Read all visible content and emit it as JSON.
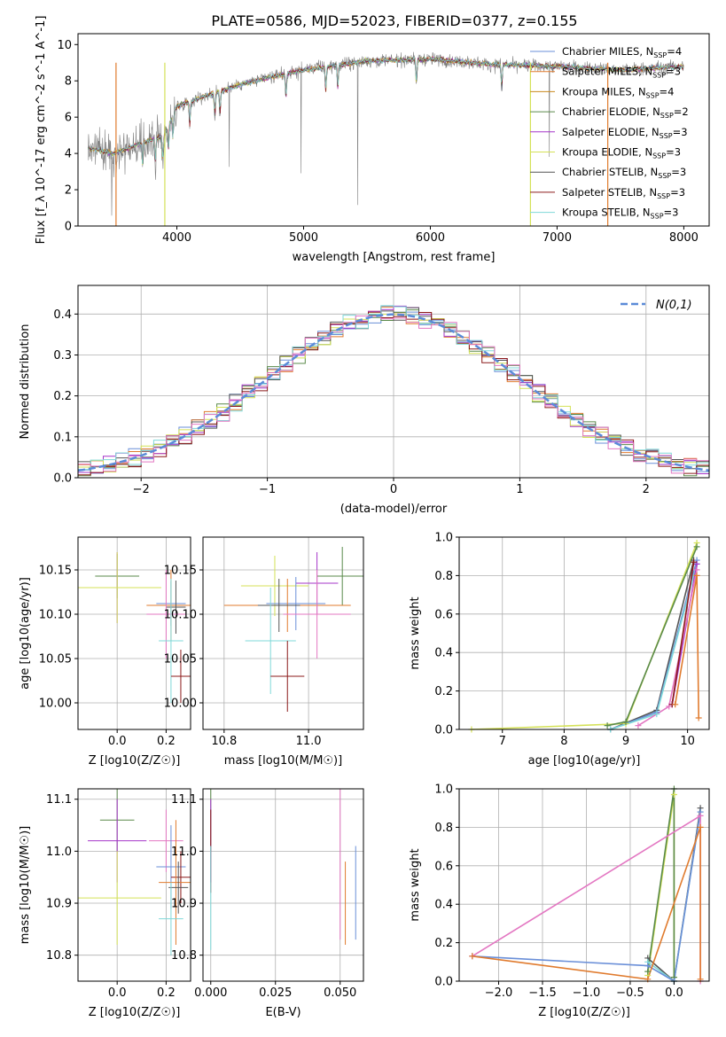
{
  "figure_title": "PLATE=0586, MJD=52023, FIBERID=0377, z=0.155",
  "colors": [
    "#1f77b4"
  ],
  "chart_data": [
    {
      "id": "spectrum",
      "type": "line",
      "xlabel": "wavelength [Angstrom, rest frame]",
      "ylabel": "Flux [f_λ 10^-17 erg cm^-2 s^-1 A^-1]",
      "xlim": [
        3220,
        8200
      ],
      "ylim": [
        0,
        10.6
      ],
      "xticks": [
        4000,
        5000,
        6000,
        7000,
        8000
      ],
      "yticks": [
        0,
        2,
        4,
        6,
        8,
        10
      ],
      "grid": false,
      "legend": "right",
      "observed_color": "#808080",
      "series": [
        {
          "name": "Chabrier MILES, N_SSP=4",
          "color": "#6a8fd8"
        },
        {
          "name": "Salpeter MILES, N_SSP=3",
          "color": "#e07b2e"
        },
        {
          "name": "Kroupa MILES, N_SSP=4",
          "color": "#c98a1e"
        },
        {
          "name": "Chabrier ELODIE, N_SSP=2",
          "color": "#5a8a4a"
        },
        {
          "name": "Salpeter ELODIE, N_SSP=3",
          "color": "#a535c9"
        },
        {
          "name": "Kroupa ELODIE, N_SSP=3",
          "color": "#d4e157"
        },
        {
          "name": "Chabrier STELIB, N_SSP=3",
          "color": "#555555"
        },
        {
          "name": "Salpeter STELIB, N_SSP=3",
          "color": "#8b1a1a"
        },
        {
          "name": "Kroupa STELIB, N_SSP=3",
          "color": "#7fd8d8"
        }
      ],
      "continuum": {
        "x": [
          3300,
          3500,
          3700,
          3900,
          4000,
          4200,
          4500,
          4800,
          5000,
          5500,
          6000,
          6500,
          7000,
          7500,
          8000
        ],
        "y": [
          4.3,
          4.0,
          4.5,
          5.0,
          6.6,
          7.1,
          7.8,
          8.3,
          8.6,
          9.1,
          9.2,
          8.9,
          8.8,
          8.6,
          8.8
        ]
      }
    },
    {
      "id": "residuals",
      "type": "bar",
      "xlabel": "(data-model)/error",
      "ylabel": "Normed distribution",
      "xlim": [
        -2.5,
        2.5
      ],
      "ylim": [
        0,
        0.47
      ],
      "xticks": [
        -2,
        -1,
        0,
        1,
        2
      ],
      "yticks": [
        0.0,
        0.1,
        0.2,
        0.3,
        0.4
      ],
      "grid": true,
      "legend": "top-right",
      "reference_label": "N(0,1)",
      "reference_color": "#5b8bd8",
      "bin_width": 0.1,
      "bins_start": -2.5,
      "histogram_colors": [
        "#6a8fd8",
        "#e07b2e",
        "#5a8a4a",
        "#a535c9",
        "#d4e157",
        "#555555",
        "#8b1a1a",
        "#7fd8d8",
        "#e377c2"
      ]
    },
    {
      "id": "age_vs_z",
      "type": "scatter",
      "xlabel": "Z [log10(Z/Z☉)]",
      "ylabel": "age [log10(age/yr)]",
      "xlim": [
        -0.16,
        0.3
      ],
      "ylim": [
        9.97,
        10.187
      ],
      "xticks": [
        0.0,
        0.2
      ],
      "yticks": [
        10.0,
        10.05,
        10.1,
        10.15
      ],
      "grid": true,
      "points": [
        {
          "x": 0.0,
          "y": 10.143,
          "xerr": 0.09,
          "yerr": 0.025,
          "color": "#5a8a4a"
        },
        {
          "x": 0.0,
          "y": 10.13,
          "xerr": 0.14,
          "yerr": 0.04,
          "color": "#a535c9"
        },
        {
          "x": 0.0,
          "y": 10.13,
          "xerr": 0.18,
          "yerr": 0.04,
          "color": "#d4e157"
        },
        {
          "x": 0.22,
          "y": 10.112,
          "xerr": 0.06,
          "yerr": 0.025,
          "color": "#6a8fd8"
        },
        {
          "x": 0.22,
          "y": 10.11,
          "xerr": 0.1,
          "yerr": 0.04,
          "color": "#e07b2e"
        },
        {
          "x": 0.24,
          "y": 10.108,
          "xerr": 0.04,
          "yerr": 0.03,
          "color": "#555555"
        },
        {
          "x": 0.2,
          "y": 10.1,
          "xerr": 0.08,
          "yerr": 0.05,
          "color": "#e377c2"
        },
        {
          "x": 0.22,
          "y": 10.07,
          "xerr": 0.05,
          "yerr": 0.07,
          "color": "#7fd8d8"
        },
        {
          "x": 0.26,
          "y": 10.03,
          "xerr": 0.04,
          "yerr": 0.03,
          "color": "#8b1a1a"
        }
      ]
    },
    {
      "id": "age_vs_mass",
      "type": "scatter",
      "xlabel": "mass [log10(M/M☉)]",
      "ylabel": "",
      "xlim": [
        10.75,
        11.13
      ],
      "ylim": [
        9.97,
        10.187
      ],
      "xticks": [
        10.8,
        11.0
      ],
      "yticks": [
        10.0,
        10.05,
        10.1,
        10.15
      ],
      "grid": true,
      "points": [
        {
          "x": 11.08,
          "y": 10.143,
          "xerr": 0.06,
          "yerr": 0.033,
          "color": "#5a8a4a"
        },
        {
          "x": 11.02,
          "y": 10.135,
          "xerr": 0.05,
          "yerr": 0.035,
          "color": "#a535c9"
        },
        {
          "x": 10.92,
          "y": 10.132,
          "xerr": 0.08,
          "yerr": 0.034,
          "color": "#d4e157"
        },
        {
          "x": 10.97,
          "y": 10.112,
          "xerr": 0.07,
          "yerr": 0.03,
          "color": "#6a8fd8"
        },
        {
          "x": 10.95,
          "y": 10.11,
          "xerr": 0.15,
          "yerr": 0.03,
          "color": "#e07b2e"
        },
        {
          "x": 10.93,
          "y": 10.11,
          "xerr": 0.05,
          "yerr": 0.03,
          "color": "#555555"
        },
        {
          "x": 11.02,
          "y": 10.1,
          "xerr": 0.08,
          "yerr": 0.05,
          "color": "#e377c2"
        },
        {
          "x": 10.91,
          "y": 10.07,
          "xerr": 0.06,
          "yerr": 0.06,
          "color": "#7fd8d8"
        },
        {
          "x": 10.95,
          "y": 10.03,
          "xerr": 0.04,
          "yerr": 0.04,
          "color": "#8b1a1a"
        }
      ]
    },
    {
      "id": "massweight_vs_age",
      "type": "line",
      "xlabel": "age [log10(age/yr)]",
      "ylabel": "mass weight",
      "xlim": [
        6.3,
        10.35
      ],
      "ylim": [
        0,
        1.0
      ],
      "xticks": [
        7,
        8,
        9,
        10
      ],
      "yticks": [
        0.0,
        0.2,
        0.4,
        0.6,
        0.8,
        1.0
      ],
      "grid": true,
      "series": [
        {
          "color": "#d4e157",
          "x": [
            6.5,
            9.0,
            10.15
          ],
          "y": [
            0.0,
            0.03,
            0.97
          ]
        },
        {
          "color": "#5a8a4a",
          "x": [
            8.7,
            9.0,
            10.15
          ],
          "y": [
            0.02,
            0.04,
            0.95
          ]
        },
        {
          "color": "#555555",
          "x": [
            8.75,
            9.5,
            10.1
          ],
          "y": [
            0.0,
            0.1,
            0.88
          ]
        },
        {
          "color": "#6a8fd8",
          "x": [
            8.75,
            9.5,
            10.15
          ],
          "y": [
            0.0,
            0.09,
            0.88
          ]
        },
        {
          "color": "#7fd8d8",
          "x": [
            8.75,
            9.5,
            10.15
          ],
          "y": [
            0.0,
            0.08,
            0.86
          ]
        },
        {
          "color": "#a535c9",
          "x": [
            9.75,
            10.15
          ],
          "y": [
            0.13,
            0.86
          ]
        },
        {
          "color": "#e377c2",
          "x": [
            9.2,
            9.7,
            10.15
          ],
          "y": [
            0.02,
            0.12,
            0.83
          ]
        },
        {
          "color": "#8b1a1a",
          "x": [
            9.75,
            10.1
          ],
          "y": [
            0.13,
            0.87
          ]
        },
        {
          "color": "#e07b2e",
          "x": [
            9.8,
            10.15,
            10.18
          ],
          "y": [
            0.13,
            0.8,
            0.06
          ]
        }
      ]
    },
    {
      "id": "mass_vs_z",
      "type": "scatter",
      "xlabel": "Z [log10(Z/Z☉)]",
      "ylabel": "mass [log10(M/M☉)]",
      "xlim": [
        -0.16,
        0.3
      ],
      "ylim": [
        10.75,
        11.12
      ],
      "xticks": [
        0.0,
        0.2
      ],
      "yticks": [
        10.8,
        10.9,
        11.0,
        11.1
      ],
      "grid": true,
      "points": [
        {
          "x": 0.0,
          "y": 11.06,
          "xerr": 0.07,
          "yerr": 0.06,
          "color": "#5a8a4a"
        },
        {
          "x": 0.2,
          "y": 11.02,
          "xerr": 0.07,
          "yerr": 0.06,
          "color": "#e377c2"
        },
        {
          "x": 0.0,
          "y": 11.02,
          "xerr": 0.12,
          "yerr": 0.08,
          "color": "#a535c9"
        },
        {
          "x": 0.22,
          "y": 10.97,
          "xerr": 0.06,
          "yerr": 0.08,
          "color": "#6a8fd8"
        },
        {
          "x": 0.26,
          "y": 10.95,
          "xerr": 0.04,
          "yerr": 0.05,
          "color": "#8b1a1a"
        },
        {
          "x": 0.24,
          "y": 10.94,
          "xerr": 0.07,
          "yerr": 0.12,
          "color": "#e07b2e"
        },
        {
          "x": 0.25,
          "y": 10.93,
          "xerr": 0.04,
          "yerr": 0.05,
          "color": "#555555"
        },
        {
          "x": 0.0,
          "y": 10.91,
          "xerr": 0.18,
          "yerr": 0.09,
          "color": "#d4e157"
        },
        {
          "x": 0.22,
          "y": 10.87,
          "xerr": 0.05,
          "yerr": 0.07,
          "color": "#7fd8d8"
        }
      ]
    },
    {
      "id": "mass_vs_ebv",
      "type": "scatter",
      "xlabel": "E(B-V)",
      "ylabel": "",
      "xlim": [
        -0.003,
        0.059
      ],
      "ylim": [
        10.75,
        11.12
      ],
      "xticks": [
        0.0,
        0.025,
        0.05
      ],
      "yticks": [
        10.8,
        10.9,
        11.0,
        11.1
      ],
      "grid": true,
      "points": [
        {
          "x": 0.0,
          "y": 11.06,
          "yerr": 0.06,
          "color": "#5a8a4a"
        },
        {
          "x": 0.0,
          "y": 11.02,
          "yerr": 0.08,
          "color": "#a535c9"
        },
        {
          "x": 0.0,
          "y": 11.0,
          "yerr": 0.08,
          "color": "#8b1a1a"
        },
        {
          "x": 0.0,
          "y": 10.91,
          "yerr": 0.1,
          "color": "#7fd8d8"
        },
        {
          "x": 0.05,
          "y": 10.98,
          "yerr": 0.15,
          "color": "#e377c2"
        },
        {
          "x": 0.052,
          "y": 10.9,
          "yerr": 0.08,
          "color": "#e07b2e"
        },
        {
          "x": 0.056,
          "y": 10.92,
          "yerr": 0.09,
          "color": "#6a8fd8"
        }
      ]
    },
    {
      "id": "massweight_vs_z",
      "type": "line",
      "xlabel": "Z [log10(Z/Z☉)]",
      "ylabel": "mass weight",
      "xlim": [
        -2.45,
        0.4
      ],
      "ylim": [
        0,
        1.0
      ],
      "xticks": [
        -2.0,
        -1.5,
        -1.0,
        -0.5,
        0.0
      ],
      "yticks": [
        0.0,
        0.2,
        0.4,
        0.6,
        0.8,
        1.0
      ],
      "grid": true,
      "series": [
        {
          "color": "#d4e157",
          "x": [
            -0.3,
            0.0,
            0.0
          ],
          "y": [
            0.03,
            0.97,
            0.0
          ]
        },
        {
          "color": "#5a8a4a",
          "x": [
            -0.3,
            0.0,
            0.0
          ],
          "y": [
            0.05,
            1.0,
            0.02
          ]
        },
        {
          "color": "#555555",
          "x": [
            -0.3,
            0.0,
            0.3
          ],
          "y": [
            0.12,
            0.0,
            0.9
          ]
        },
        {
          "color": "#7fd8d8",
          "x": [
            -0.3,
            0.0,
            0.3
          ],
          "y": [
            0.1,
            0.0,
            0.88
          ]
        },
        {
          "color": "#6a8fd8",
          "x": [
            -2.3,
            -0.3,
            0.0,
            0.3
          ],
          "y": [
            0.13,
            0.08,
            0.0,
            0.88
          ]
        },
        {
          "color": "#e377c2",
          "x": [
            -2.3,
            0.3,
            0.3
          ],
          "y": [
            0.13,
            0.86,
            0.0
          ]
        },
        {
          "color": "#e07b2e",
          "x": [
            -2.3,
            -0.3,
            0.3,
            0.3
          ],
          "y": [
            0.13,
            0.01,
            0.8,
            0.01
          ]
        }
      ]
    }
  ]
}
